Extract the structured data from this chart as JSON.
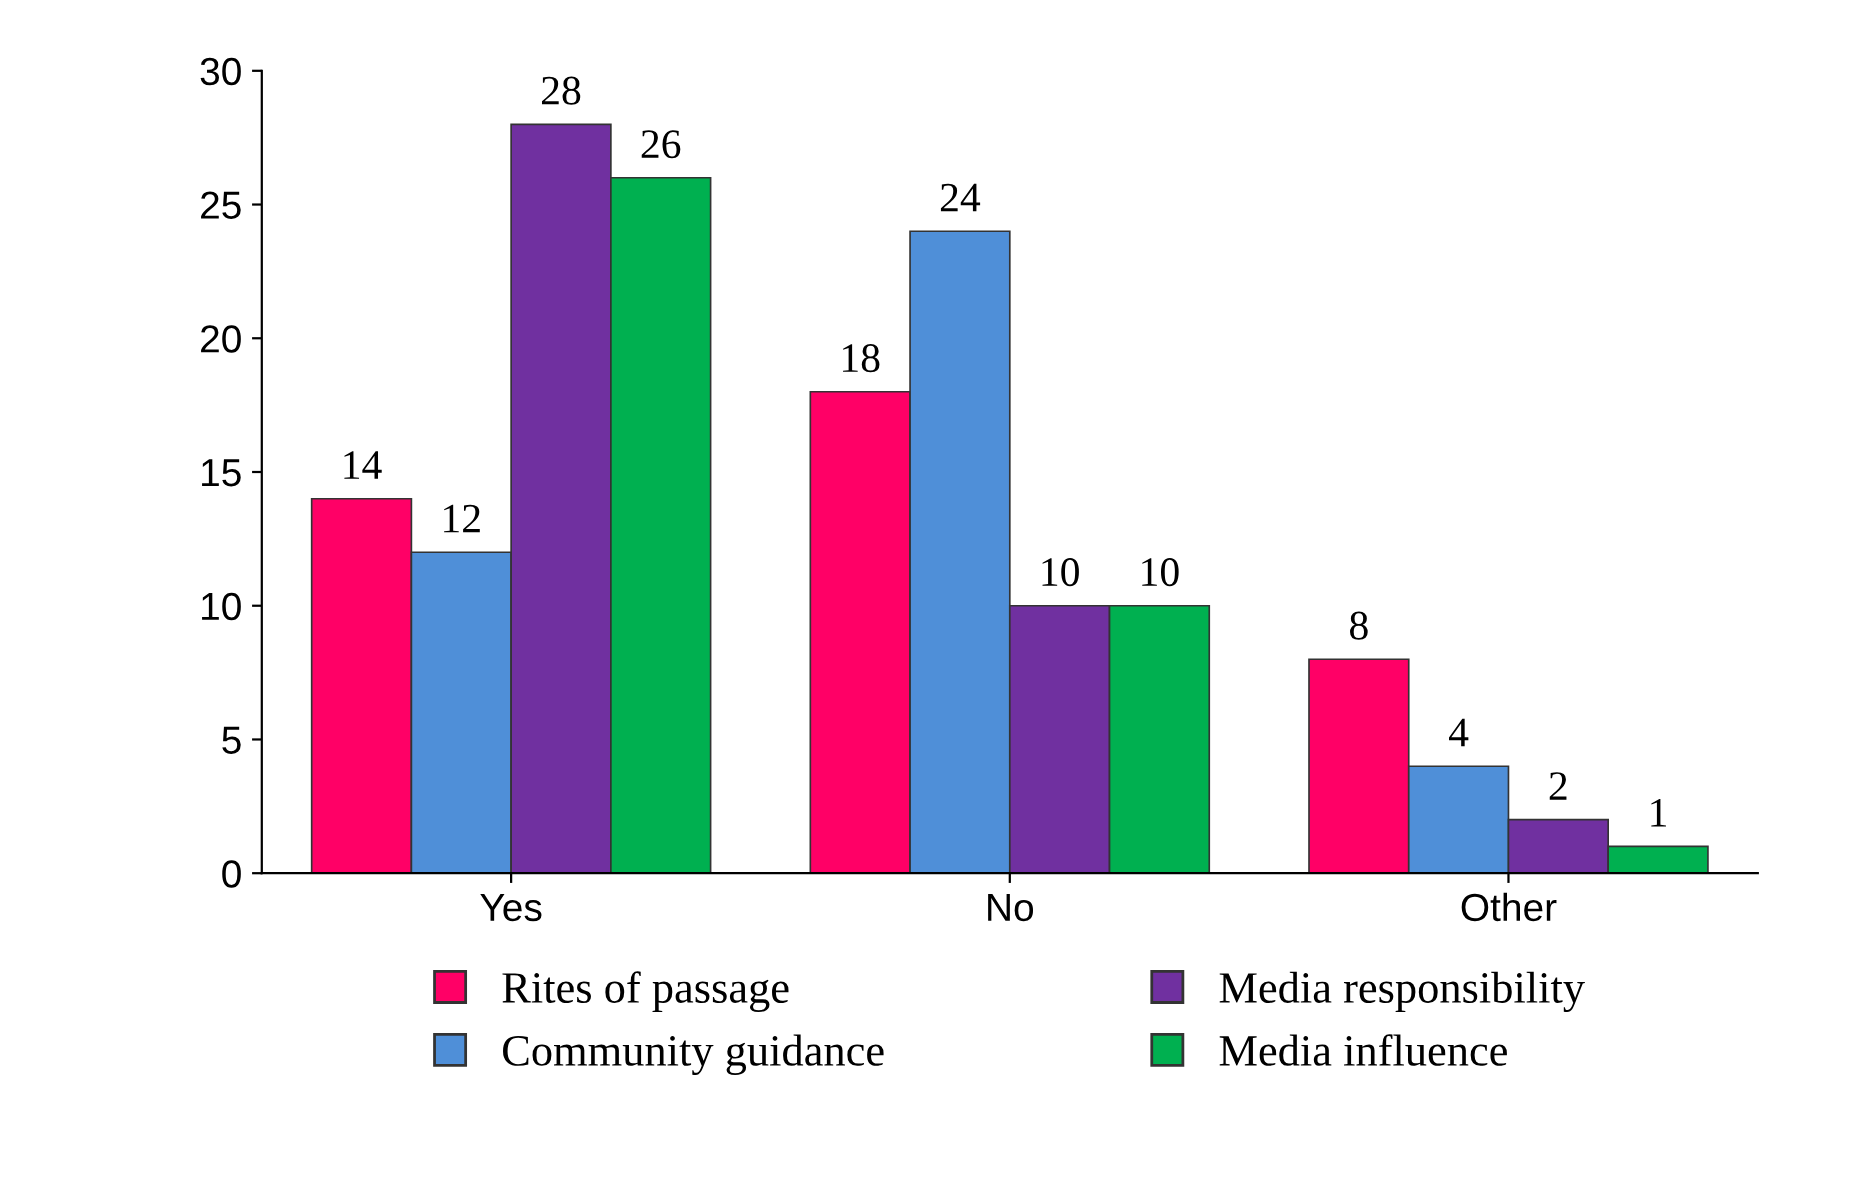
{
  "chart_data": {
    "type": "bar",
    "categories": [
      "Yes",
      "No",
      "Other"
    ],
    "series": [
      {
        "name": "Rites of passage",
        "color": "#ff0066",
        "values": [
          14,
          18,
          8
        ]
      },
      {
        "name": "Community guidance",
        "color": "#4f8fd8",
        "values": [
          12,
          24,
          4
        ]
      },
      {
        "name": "Media responsibility",
        "color": "#7030a0",
        "values": [
          28,
          10,
          2
        ]
      },
      {
        "name": "Media influence",
        "color": "#00b050",
        "values": [
          26,
          10,
          1
        ]
      }
    ],
    "ylim": [
      0,
      30
    ],
    "yticks": [
      0,
      5,
      10,
      15,
      20,
      25,
      30
    ],
    "data_labels": true,
    "grid": false,
    "legend": "bottom"
  }
}
